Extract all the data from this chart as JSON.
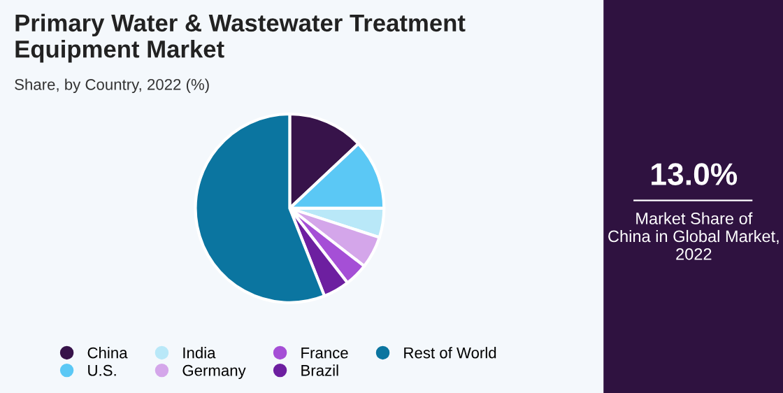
{
  "chart_data": {
    "type": "pie",
    "title": "Primary Water & Wastewater Treatment\nEquipment Market",
    "subtitle": "Share, by Country, 2022 (%)",
    "categories": [
      "China",
      "U.S.",
      "India",
      "Germany",
      "France",
      "Brazil",
      "Rest of World"
    ],
    "values": [
      13.0,
      12,
      5,
      5.5,
      4,
      4.5,
      56
    ],
    "colors": [
      "#37134a",
      "#5bc8f5",
      "#b9e8f8",
      "#d4a6ea",
      "#a54fd6",
      "#6d1fa0",
      "#0b75a0"
    ],
    "legend": "bottom",
    "annotations": [
      "13.0%",
      "Market Share of\nChina in Global Market,\n2022"
    ]
  }
}
